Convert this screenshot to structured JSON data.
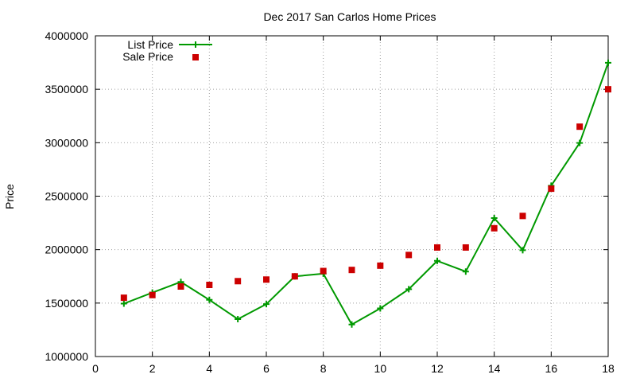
{
  "chart_data": {
    "type": "line",
    "title": "Dec 2017 San Carlos Home Prices",
    "xlabel": "",
    "ylabel": "Price",
    "xlim": [
      0,
      18
    ],
    "ylim": [
      1000000,
      4000000
    ],
    "xticks": [
      0,
      2,
      4,
      6,
      8,
      10,
      12,
      14,
      16,
      18
    ],
    "yticks": [
      1000000,
      1500000,
      2000000,
      2500000,
      3000000,
      3500000,
      4000000
    ],
    "grid": true,
    "legend_position": "top-left",
    "series": [
      {
        "name": "List Price",
        "style": "line-plus",
        "color": "#009900",
        "x": [
          1,
          2,
          3,
          4,
          5,
          6,
          7,
          8,
          9,
          10,
          11,
          12,
          13,
          14,
          15,
          16,
          17,
          18
        ],
        "y": [
          1495000,
          1598000,
          1698000,
          1530000,
          1350000,
          1490000,
          1750000,
          1775000,
          1300000,
          1450000,
          1630000,
          1895000,
          1795000,
          2295000,
          1995000,
          2598000,
          2998000,
          3748000
        ]
      },
      {
        "name": "Sale Price",
        "style": "square",
        "color": "#cc0000",
        "x": [
          1,
          2,
          3,
          4,
          5,
          6,
          7,
          8,
          9,
          10,
          11,
          12,
          13,
          14,
          15,
          16,
          17,
          18
        ],
        "y": [
          1550000,
          1575000,
          1655000,
          1670000,
          1705000,
          1720000,
          1750000,
          1800000,
          1810000,
          1850000,
          1950000,
          2020000,
          2020000,
          2200000,
          2315000,
          2570000,
          3150000,
          3500000
        ]
      }
    ]
  }
}
